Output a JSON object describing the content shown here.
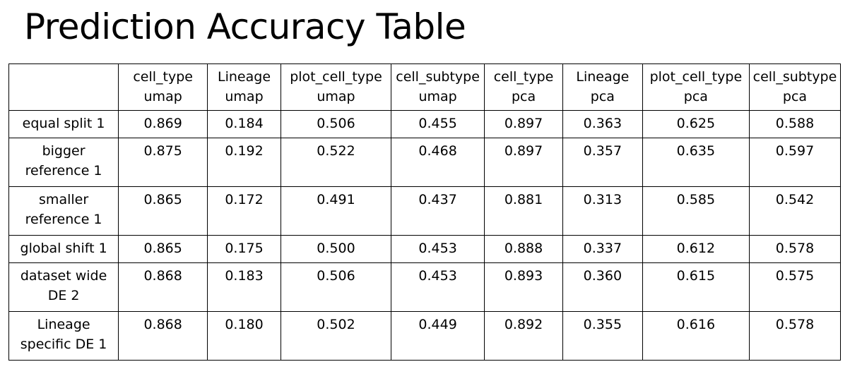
{
  "title": "Prediction Accuracy Table",
  "table": {
    "header_corner": "",
    "columns": [
      {
        "line1": "cell_type",
        "line2": "umap"
      },
      {
        "line1": "Lineage",
        "line2": "umap"
      },
      {
        "line1": "plot_cell_type",
        "line2": "umap"
      },
      {
        "line1": "cell_subtype",
        "line2": "umap"
      },
      {
        "line1": "cell_type",
        "line2": "pca"
      },
      {
        "line1": "Lineage",
        "line2": "pca"
      },
      {
        "line1": "plot_cell_type",
        "line2": "pca"
      },
      {
        "line1": "cell_subtype",
        "line2": "pca"
      }
    ],
    "rows": [
      {
        "label1": "equal split 1",
        "label2": "",
        "values": [
          "0.869",
          "0.184",
          "0.506",
          "0.455",
          "0.897",
          "0.363",
          "0.625",
          "0.588"
        ]
      },
      {
        "label1": "bigger",
        "label2": "reference 1",
        "values": [
          "0.875",
          "0.192",
          "0.522",
          "0.468",
          "0.897",
          "0.357",
          "0.635",
          "0.597"
        ]
      },
      {
        "label1": "smaller",
        "label2": "reference 1",
        "values": [
          "0.865",
          "0.172",
          "0.491",
          "0.437",
          "0.881",
          "0.313",
          "0.585",
          "0.542"
        ]
      },
      {
        "label1": "global shift 1",
        "label2": "",
        "values": [
          "0.865",
          "0.175",
          "0.500",
          "0.453",
          "0.888",
          "0.337",
          "0.612",
          "0.578"
        ]
      },
      {
        "label1": "dataset wide",
        "label2": "DE 2",
        "values": [
          "0.868",
          "0.183",
          "0.506",
          "0.453",
          "0.893",
          "0.360",
          "0.615",
          "0.575"
        ]
      },
      {
        "label1": "Lineage",
        "label2": "specific DE 1",
        "values": [
          "0.868",
          "0.180",
          "0.502",
          "0.449",
          "0.892",
          "0.355",
          "0.616",
          "0.578"
        ]
      }
    ]
  }
}
